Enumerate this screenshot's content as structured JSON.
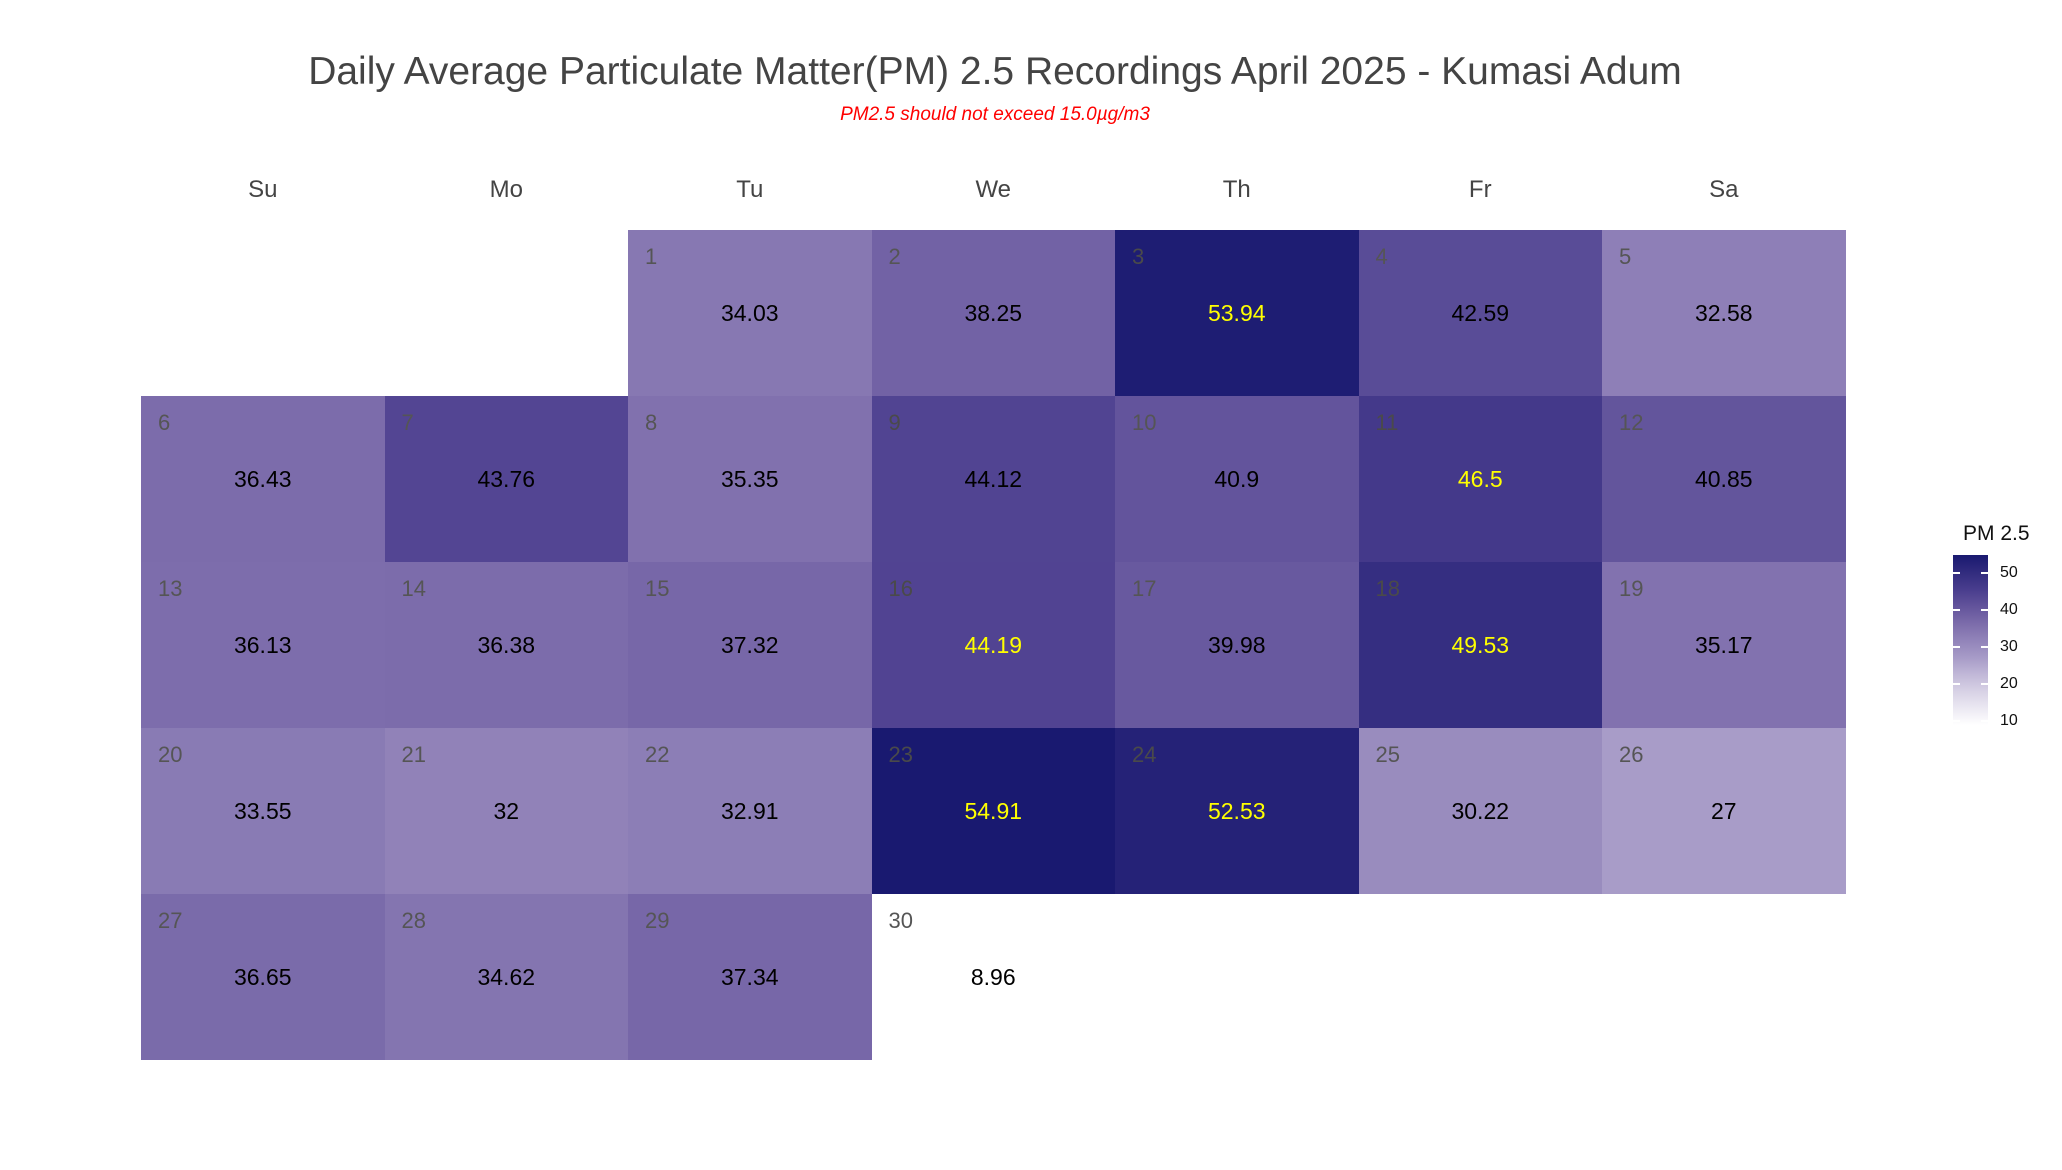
{
  "chart_data": {
    "type": "heatmap",
    "title": "Daily Average Particulate Matter(PM) 2.5 Recordings April 2025 -  Kumasi Adum",
    "subtitle": "PM2.5 should not exceed 15.0µg/m3",
    "weekdays": [
      "Su",
      "Mo",
      "Tu",
      "We",
      "Th",
      "Fr",
      "Sa"
    ],
    "first_weekday_index": 2,
    "days": [
      {
        "day": "1",
        "value": 34.03,
        "label_color": "#000000"
      },
      {
        "day": "2",
        "value": 38.25,
        "label_color": "#000000"
      },
      {
        "day": "3",
        "value": 53.94,
        "label_color": "#ffff00"
      },
      {
        "day": "4",
        "value": 42.59,
        "label_color": "#000000"
      },
      {
        "day": "5",
        "value": 32.58,
        "label_color": "#000000"
      },
      {
        "day": "6",
        "value": 36.43,
        "label_color": "#000000"
      },
      {
        "day": "7",
        "value": 43.76,
        "label_color": "#000000"
      },
      {
        "day": "8",
        "value": 35.35,
        "label_color": "#000000"
      },
      {
        "day": "9",
        "value": 44.12,
        "label_color": "#000000"
      },
      {
        "day": "10",
        "value": 40.9,
        "label_color": "#000000"
      },
      {
        "day": "11",
        "value": 46.5,
        "label_color": "#ffff00"
      },
      {
        "day": "12",
        "value": 40.85,
        "label_color": "#000000"
      },
      {
        "day": "13",
        "value": 36.13,
        "label_color": "#000000"
      },
      {
        "day": "14",
        "value": 36.38,
        "label_color": "#000000"
      },
      {
        "day": "15",
        "value": 37.32,
        "label_color": "#000000"
      },
      {
        "day": "16",
        "value": 44.19,
        "label_color": "#ffff00"
      },
      {
        "day": "17",
        "value": 39.98,
        "label_color": "#000000"
      },
      {
        "day": "18",
        "value": 49.53,
        "label_color": "#ffff00"
      },
      {
        "day": "19",
        "value": 35.17,
        "label_color": "#000000"
      },
      {
        "day": "20",
        "value": 33.55,
        "label_color": "#000000"
      },
      {
        "day": "21",
        "value": 32,
        "label_color": "#000000"
      },
      {
        "day": "22",
        "value": 32.91,
        "label_color": "#000000"
      },
      {
        "day": "23",
        "value": 54.91,
        "label_color": "#ffff00"
      },
      {
        "day": "24",
        "value": 52.53,
        "label_color": "#ffff00"
      },
      {
        "day": "25",
        "value": 30.22,
        "label_color": "#000000"
      },
      {
        "day": "26",
        "value": 27,
        "label_color": "#000000"
      },
      {
        "day": "27",
        "value": 36.65,
        "label_color": "#000000"
      },
      {
        "day": "28",
        "value": 34.62,
        "label_color": "#000000"
      },
      {
        "day": "29",
        "value": 37.34,
        "label_color": "#000000"
      },
      {
        "day": "30",
        "value": 8.96,
        "label_color": "#000000"
      }
    ],
    "legend": {
      "title": "PM 2.5",
      "ticks": [
        "10",
        "20",
        "30",
        "40",
        "50"
      ],
      "tick_values": [
        10,
        20,
        30,
        40,
        50
      ],
      "placement": "right"
    },
    "color_scale": {
      "low": "#ffffff",
      "high": "#191970",
      "range": [
        8.96,
        54.91
      ]
    }
  }
}
